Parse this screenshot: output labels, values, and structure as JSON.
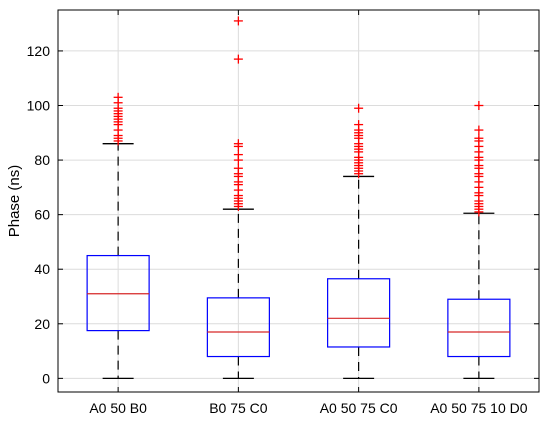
{
  "chart_data": {
    "type": "box",
    "title": "",
    "xlabel": "",
    "ylabel": "Phase (ns)",
    "ylim": [
      -5,
      135
    ],
    "yticks": [
      0,
      20,
      40,
      60,
      80,
      100,
      120
    ],
    "grid": true,
    "categories": [
      "A0 50 B0",
      "B0 75 C0",
      "A0 50 75 C0",
      "A0 50 75 10 D0"
    ],
    "boxes": [
      {
        "label": "A0 50 B0",
        "whisker_low": 0,
        "q1": 17.5,
        "median": 31,
        "q3": 45,
        "whisker_high": 86,
        "outliers": [
          87,
          88,
          89,
          91,
          93,
          94,
          95,
          96,
          97,
          98,
          99,
          101,
          103
        ]
      },
      {
        "label": "B0 75 C0",
        "whisker_low": 0,
        "q1": 8,
        "median": 17,
        "q3": 29.5,
        "whisker_high": 62,
        "outliers": [
          63,
          64,
          65,
          66,
          67,
          69,
          71,
          72,
          74,
          75,
          77,
          80,
          82,
          85,
          86,
          117,
          131
        ]
      },
      {
        "label": "A0 50 75 C0",
        "whisker_low": 0,
        "q1": 11.5,
        "median": 22,
        "q3": 36.5,
        "whisker_high": 74,
        "outliers": [
          75,
          76,
          77,
          78,
          79,
          80,
          81,
          83,
          84,
          85,
          86,
          88,
          89,
          90,
          91,
          93,
          99
        ]
      },
      {
        "label": "A0 50 75 10 D0",
        "whisker_low": 0,
        "q1": 8,
        "median": 17,
        "q3": 29,
        "whisker_high": 60.5,
        "outliers": [
          61,
          62,
          63,
          64,
          65,
          67,
          68,
          70,
          72,
          74,
          75,
          77,
          78,
          80,
          81,
          83,
          85,
          87,
          88,
          91,
          100
        ]
      }
    ],
    "colors": {
      "box": "#0000ff",
      "median": "#d62728",
      "outlier": "#ff0000",
      "whisker": "#000000",
      "grid": "#dcdcdc",
      "axis": "#000000"
    }
  }
}
